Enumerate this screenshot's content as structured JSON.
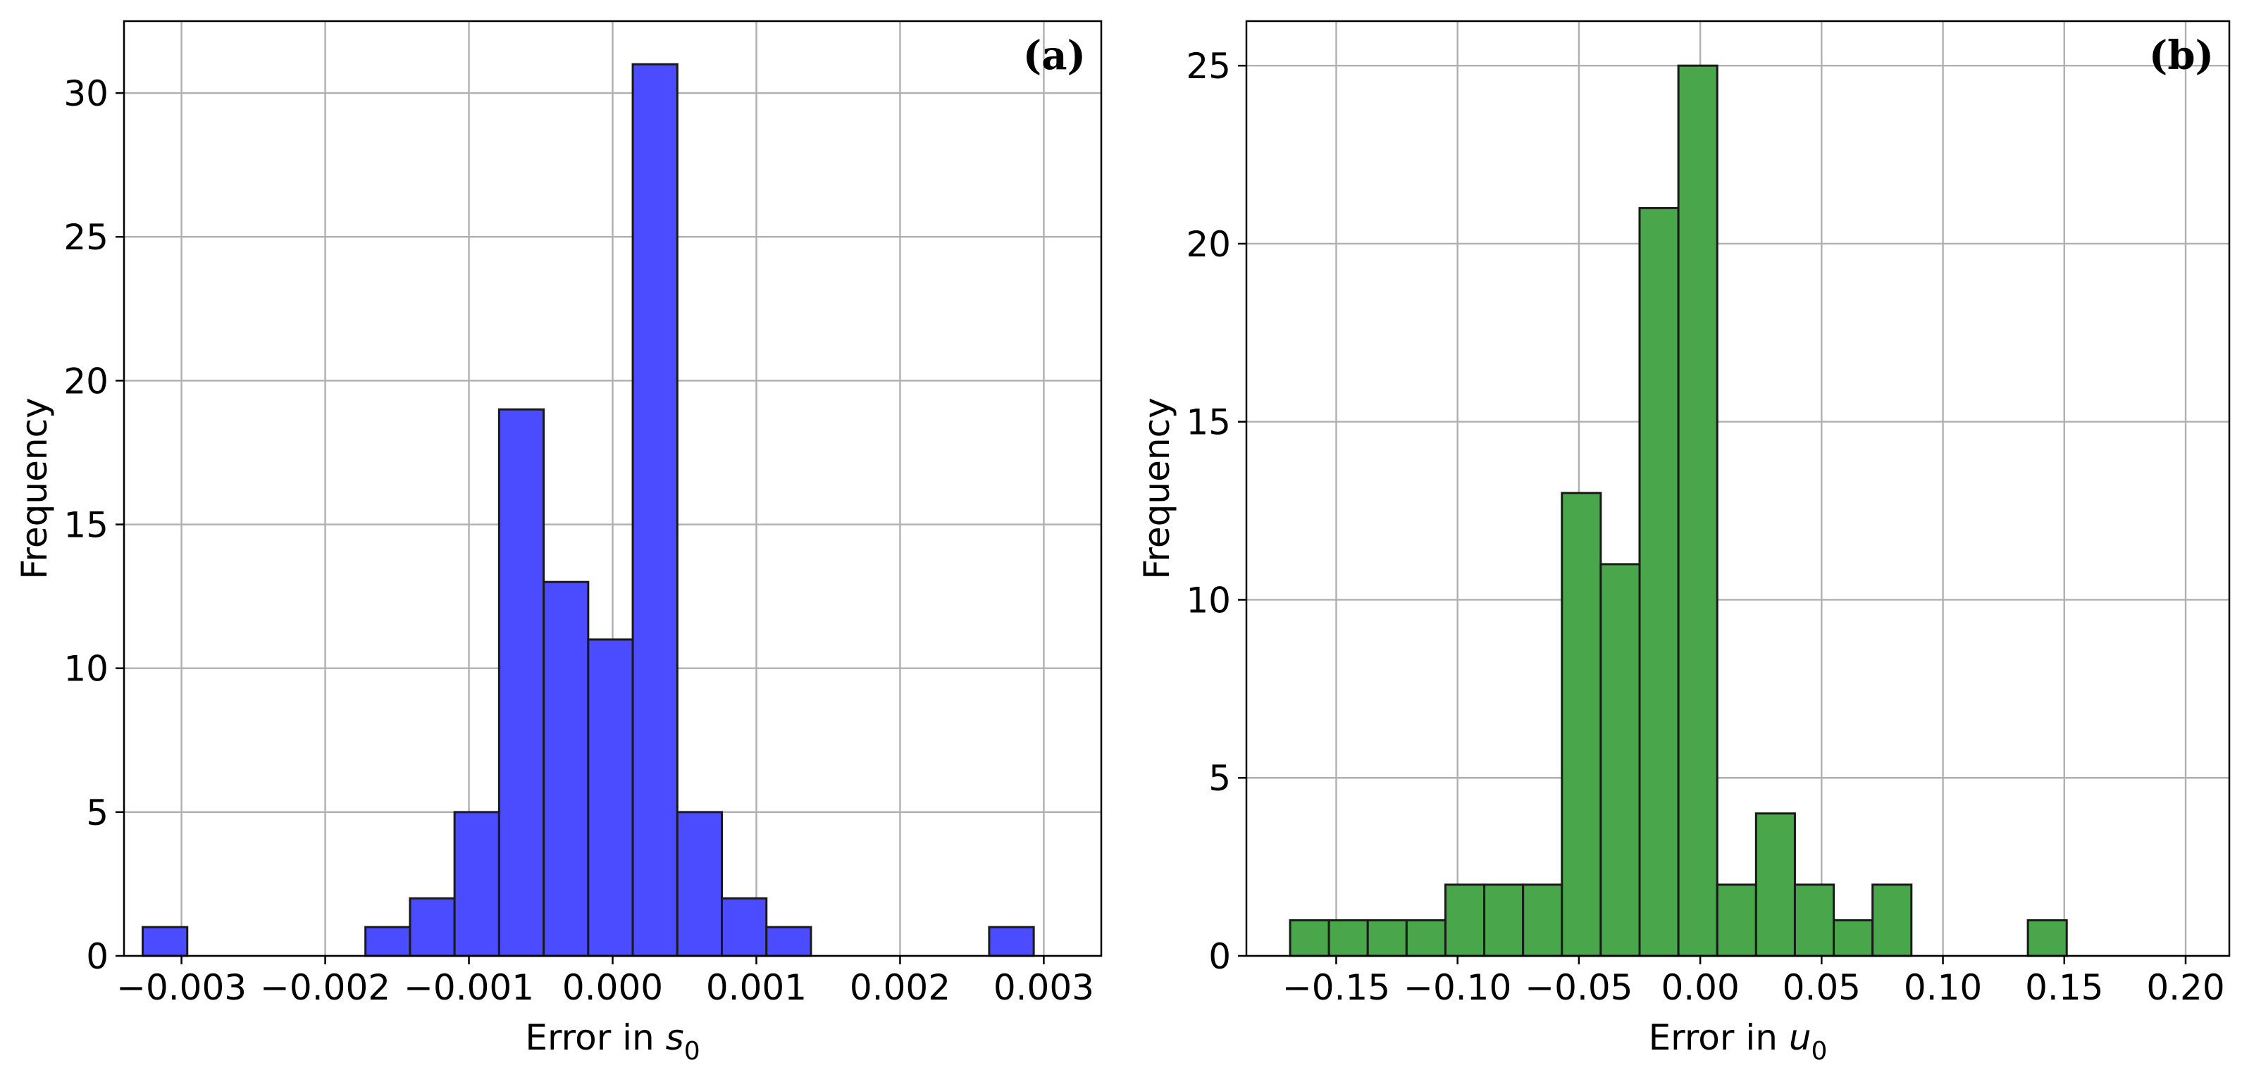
{
  "chart_data": [
    {
      "type": "bar",
      "panel_label": "(a)",
      "xlabel": "Error in s",
      "xlabel_subscript": "0",
      "ylabel": "Frequency",
      "xlim": [
        -0.0034,
        0.0034
      ],
      "ylim": [
        0,
        32.5
      ],
      "xticks": [
        -0.003,
        -0.002,
        -0.001,
        0.0,
        0.001,
        0.002,
        0.003
      ],
      "xtick_labels": [
        "−0.003",
        "−0.002",
        "−0.001",
        "0.000",
        "0.001",
        "0.002",
        "0.003"
      ],
      "yticks": [
        0,
        5,
        10,
        15,
        20,
        25,
        30
      ],
      "ytick_labels": [
        "0",
        "5",
        "10",
        "15",
        "20",
        "25",
        "30"
      ],
      "grid": true,
      "bar_color": "#4b4bff",
      "bin_edges": [
        -0.00327,
        -0.00296,
        -0.00265,
        -0.00234,
        -0.00203,
        -0.00172,
        -0.00141,
        -0.0011,
        -0.00079,
        -0.00048,
        -0.00017,
        0.00014,
        0.00045,
        0.00076,
        0.00107,
        0.00138,
        0.00169,
        0.002,
        0.00231,
        0.00262,
        0.00293,
        0.00324
      ],
      "values": [
        1,
        0,
        0,
        0,
        0,
        1,
        2,
        5,
        19,
        13,
        11,
        31,
        5,
        2,
        1,
        0,
        0,
        0,
        0,
        1,
        0
      ]
    },
    {
      "type": "bar",
      "panel_label": "(b)",
      "xlabel": "Error in u",
      "xlabel_subscript": "0",
      "ylabel": "Frequency",
      "xlim": [
        -0.187,
        0.218
      ],
      "ylim": [
        0,
        26.25
      ],
      "xticks": [
        -0.15,
        -0.1,
        -0.05,
        0.0,
        0.05,
        0.1,
        0.15,
        0.2
      ],
      "xtick_labels": [
        "−0.15",
        "−0.10",
        "−0.05",
        "0.00",
        "0.05",
        "0.10",
        "0.15",
        "0.20"
      ],
      "yticks": [
        0,
        5,
        10,
        15,
        20,
        25
      ],
      "ytick_labels": [
        "0",
        "5",
        "10",
        "15",
        "20",
        "25"
      ],
      "grid": true,
      "bar_color": "#4aa64a",
      "bin_edges": [
        -0.169,
        -0.153,
        -0.137,
        -0.121,
        -0.105,
        -0.089,
        -0.073,
        -0.057,
        -0.041,
        -0.025,
        -0.009,
        0.007,
        0.023,
        0.039,
        0.055,
        0.071,
        0.087,
        0.103,
        0.119,
        0.135,
        0.151,
        0.167,
        0.183,
        0.199
      ],
      "values": [
        1,
        1,
        1,
        1,
        2,
        2,
        2,
        13,
        11,
        21,
        25,
        2,
        4,
        2,
        1,
        2,
        0,
        0,
        0,
        1,
        0,
        0,
        0
      ]
    }
  ]
}
